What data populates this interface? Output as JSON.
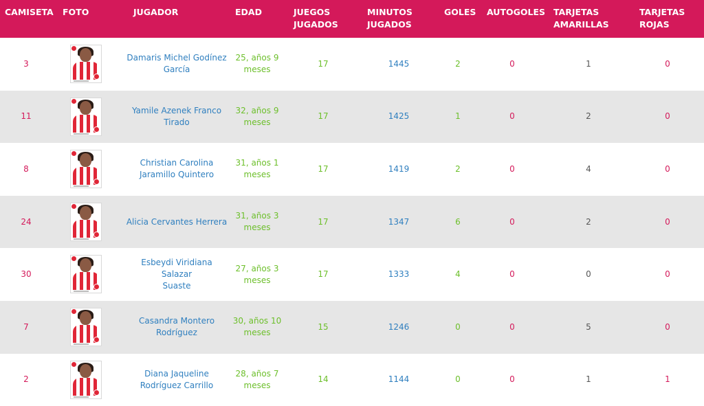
{
  "headers": {
    "camiseta": "CAMISETA",
    "foto": "FOTO",
    "jugador": "JUGADOR",
    "edad": "EDAD",
    "juegos1": "JUEGOS",
    "juegos2": "JUGADOS",
    "minutos1": "MINUTOS",
    "minutos2": "JUGADOS",
    "goles": "GOLES",
    "autogoles": "AUTOGOLES",
    "amarillas1": "TARJETAS",
    "amarillas2": "AMARILLAS",
    "rojas1": "TARJETAS",
    "rojas2": "ROJAS"
  },
  "colors": {
    "header_bg": "#d4195a",
    "accent_red": "#d4195a",
    "link_blue": "#2f7fbf",
    "value_green": "#6cbf2a",
    "row_alt": "#e6e6e6"
  },
  "players": [
    {
      "camiseta": "3",
      "name1": "Damaris Michel Godínez",
      "name2": "García",
      "edad1": "25, años 9",
      "edad2": "meses",
      "juegos": "17",
      "minutos": "1445",
      "goles": "2",
      "autogoles": "0",
      "amarillas": "1",
      "rojas": "0",
      "photo": "player-photo-icon"
    },
    {
      "camiseta": "11",
      "name1": "Yamile Azenek Franco",
      "name2": "Tirado",
      "edad1": "32, años 9",
      "edad2": "meses",
      "juegos": "17",
      "minutos": "1425",
      "goles": "1",
      "autogoles": "0",
      "amarillas": "2",
      "rojas": "0",
      "photo": "player-photo-icon"
    },
    {
      "camiseta": "8",
      "name1": "Christian Carolina",
      "name2": "Jaramillo Quintero",
      "edad1": "31, años 1",
      "edad2": "meses",
      "juegos": "17",
      "minutos": "1419",
      "goles": "2",
      "autogoles": "0",
      "amarillas": "4",
      "rojas": "0",
      "photo": "player-photo-icon"
    },
    {
      "camiseta": "24",
      "name1": "Alicia Cervantes Herrera",
      "name2": "",
      "edad1": "31, años 3",
      "edad2": "meses",
      "juegos": "17",
      "minutos": "1347",
      "goles": "6",
      "autogoles": "0",
      "amarillas": "2",
      "rojas": "0",
      "photo": "player-photo-icon"
    },
    {
      "camiseta": "30",
      "name1": "Esbeydi Viridiana Salazar",
      "name2": "Suaste",
      "edad1": "27, años 3",
      "edad2": "meses",
      "juegos": "17",
      "minutos": "1333",
      "goles": "4",
      "autogoles": "0",
      "amarillas": "0",
      "rojas": "0",
      "photo": "player-photo-icon"
    },
    {
      "camiseta": "7",
      "name1": "Casandra Montero",
      "name2": "Rodríguez",
      "edad1": "30, años 10",
      "edad2": "meses",
      "juegos": "15",
      "minutos": "1246",
      "goles": "0",
      "autogoles": "0",
      "amarillas": "5",
      "rojas": "0",
      "photo": "player-photo-icon"
    },
    {
      "camiseta": "2",
      "name1": "Diana Jaqueline",
      "name2": "Rodríguez Carrillo",
      "edad1": "28, años 7",
      "edad2": "meses",
      "juegos": "14",
      "minutos": "1144",
      "goles": "0",
      "autogoles": "0",
      "amarillas": "1",
      "rojas": "1",
      "photo": "player-photo-icon"
    }
  ]
}
